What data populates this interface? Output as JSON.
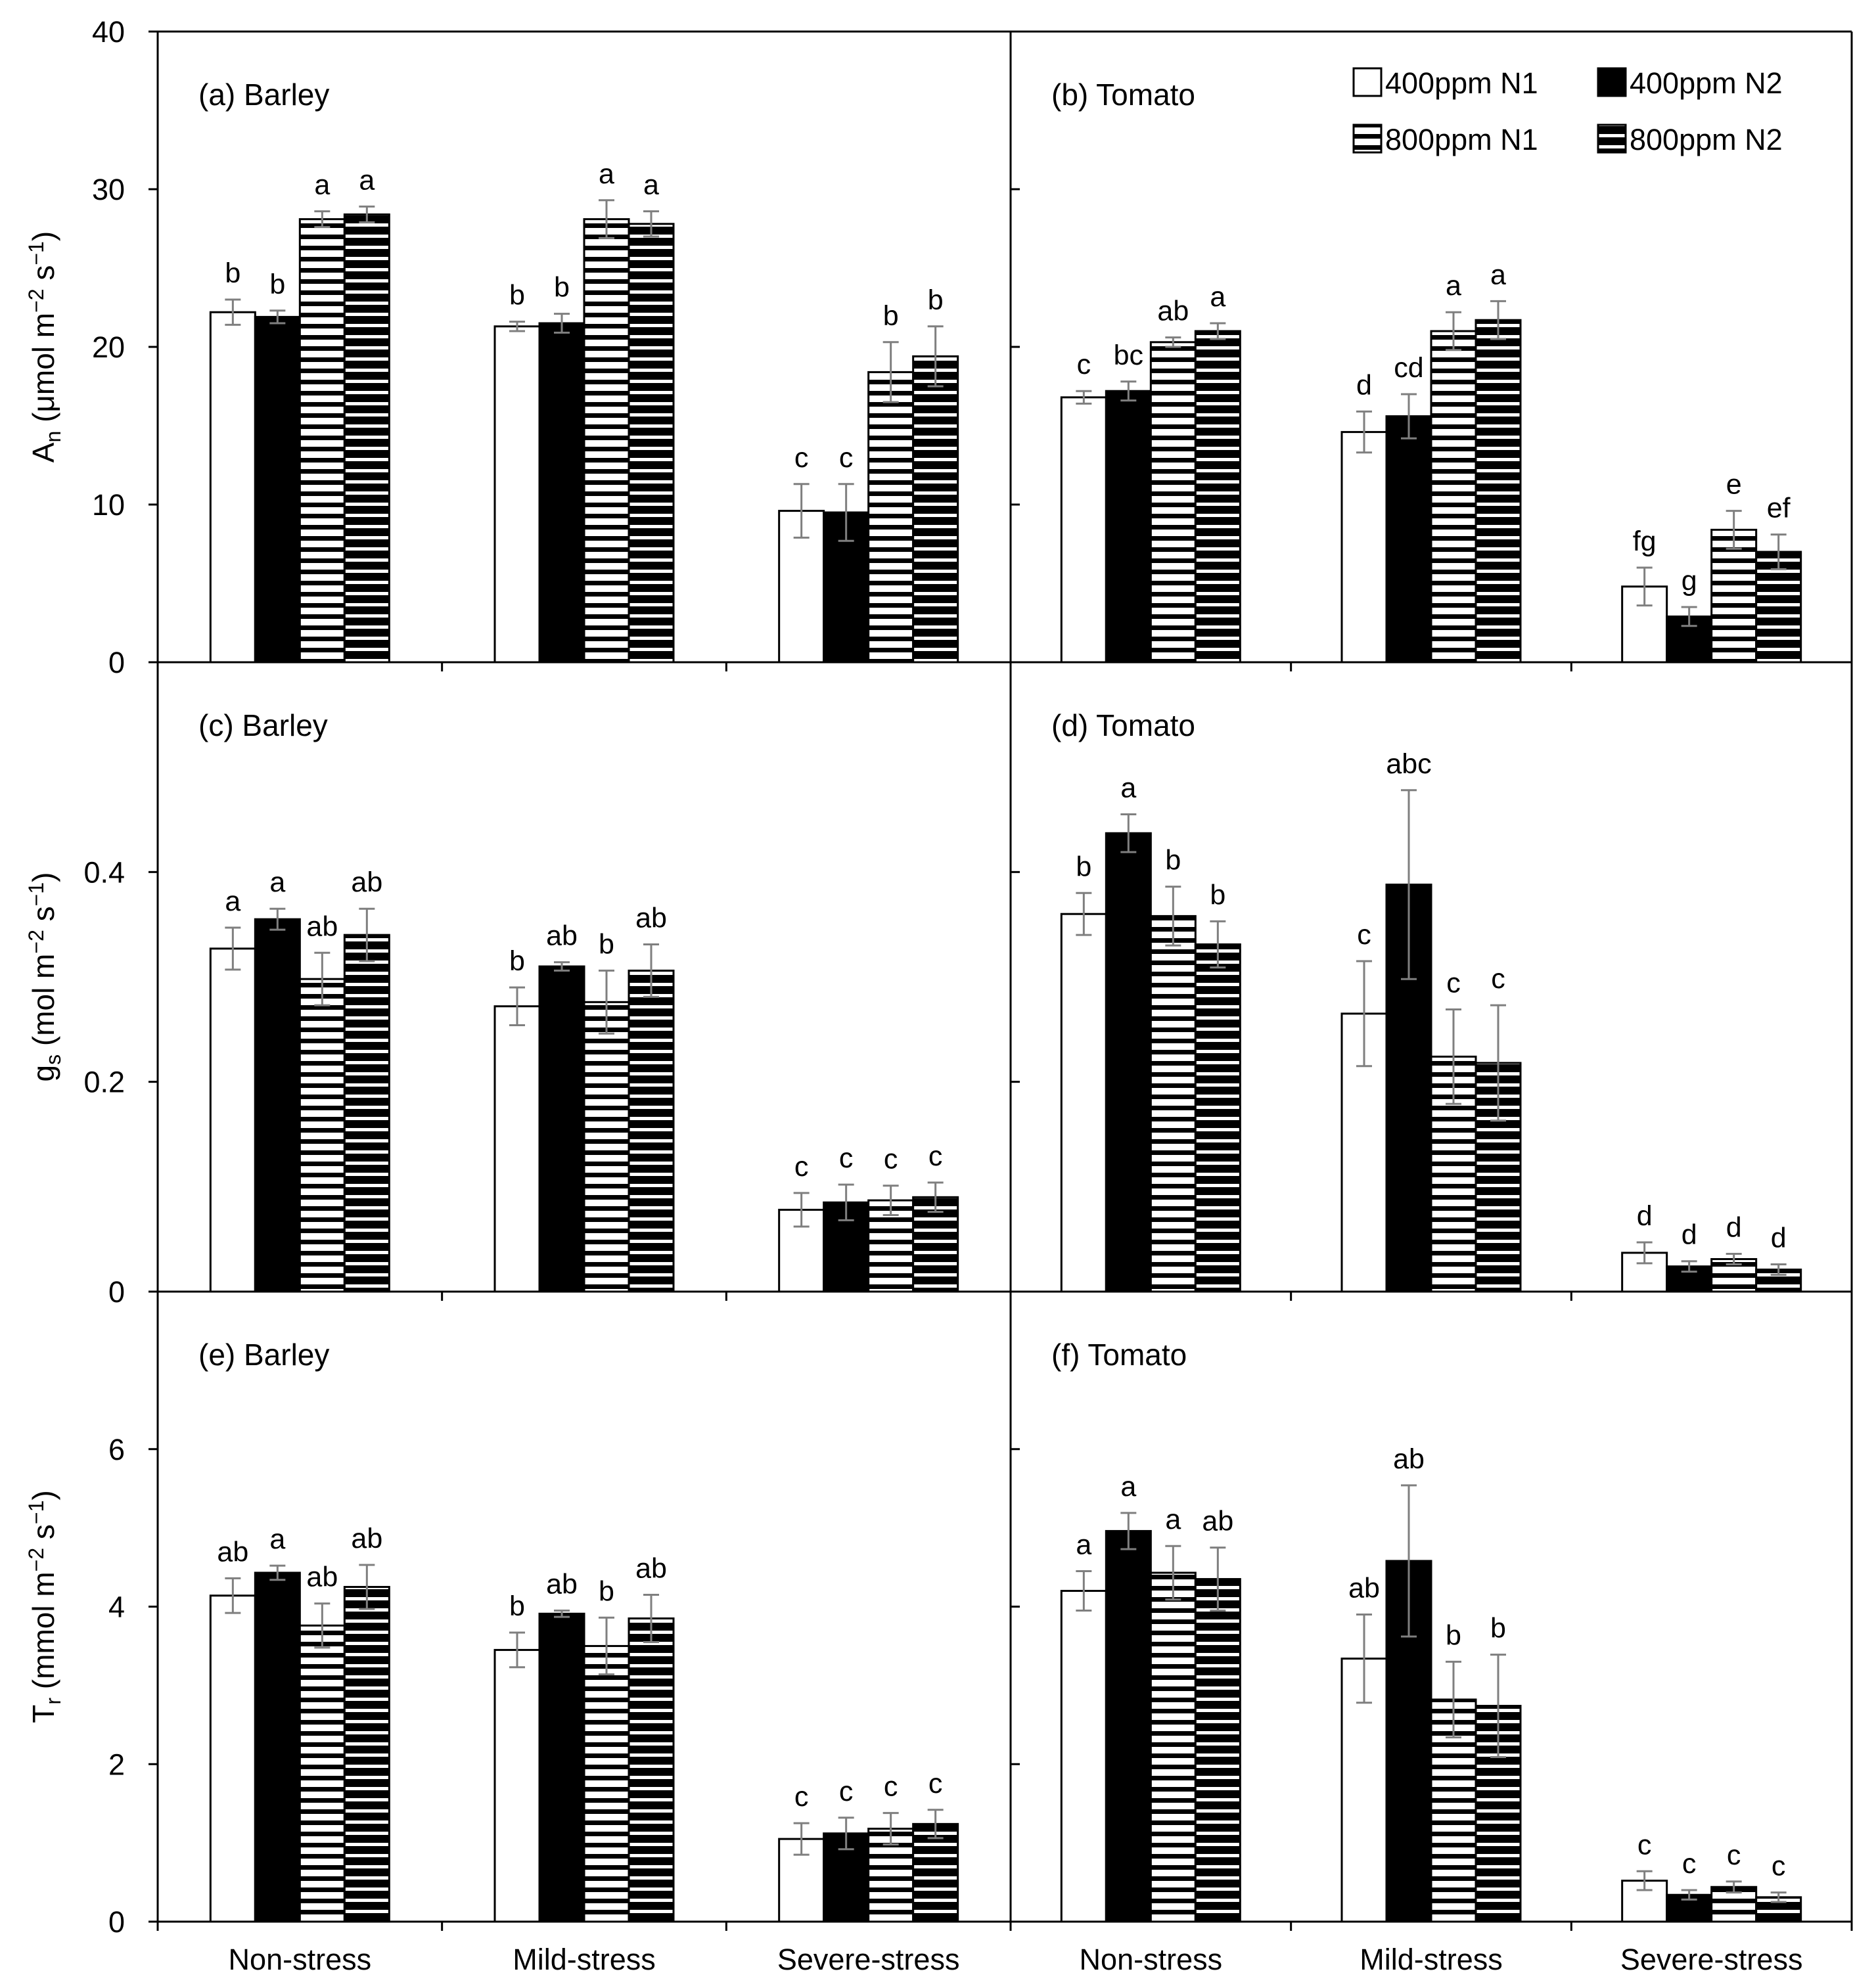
{
  "chart_data": {
    "type": "bar",
    "layout": "3x2 panel grid, shared x categories",
    "categories": [
      "Non-stress",
      "Mild-stress",
      "Severe-stress"
    ],
    "series_names": [
      "400ppm N1",
      "400ppm N2",
      "800ppm N1",
      "800ppm N2"
    ],
    "series_styles": [
      "open",
      "solid",
      "horizontal-stripes",
      "dense-horizontal-stripes"
    ],
    "legend": {
      "placement": "top-right of panel (b)",
      "entries": [
        "400ppm N1",
        "400ppm N2",
        "800ppm N1",
        "800ppm N2"
      ]
    },
    "rows": [
      {
        "ylabel_main": "A",
        "ylabel_sub": "n",
        "ylabel_rest": " (μmol m",
        "ylabel_sup1": "−2",
        "ylabel_mid": " s",
        "ylabel_sup2": "−1",
        "ylabel_end": ")",
        "ylim": [
          0,
          40
        ],
        "yticks": [
          0,
          10,
          20,
          30,
          40
        ],
        "ytick_labels": [
          "0",
          "10",
          "20",
          "30",
          "40"
        ]
      },
      {
        "ylabel_main": "g",
        "ylabel_sub": "s",
        "ylabel_rest": " (mol m",
        "ylabel_sup1": "−2",
        "ylabel_mid": " s",
        "ylabel_sup2": "−1",
        "ylabel_end": ")",
        "ylim": [
          0,
          0.6
        ],
        "yticks": [
          0,
          0.2,
          0.4
        ],
        "ytick_labels": [
          "0",
          "0.2",
          "0.4"
        ]
      },
      {
        "ylabel_main": "T",
        "ylabel_sub": "r",
        "ylabel_rest": " (mmol m",
        "ylabel_sup1": "−2",
        "ylabel_mid": " s",
        "ylabel_sup2": "−1",
        "ylabel_end": ")",
        "ylim": [
          0,
          8
        ],
        "yticks": [
          0,
          2,
          4,
          6
        ],
        "ytick_labels": [
          "0",
          "2",
          "4",
          "6"
        ]
      }
    ],
    "panels": [
      {
        "title": "(a) Barley",
        "row": 0,
        "col": 0,
        "values": [
          [
            22.2,
            21.9,
            28.1,
            28.4
          ],
          [
            21.3,
            21.5,
            28.1,
            27.8
          ],
          [
            9.6,
            9.5,
            18.4,
            19.4
          ]
        ],
        "errors": [
          [
            0.8,
            0.4,
            0.5,
            0.5
          ],
          [
            0.3,
            0.6,
            1.2,
            0.8
          ],
          [
            1.7,
            1.8,
            1.9,
            1.9
          ]
        ],
        "letters": [
          [
            "b",
            "b",
            "a",
            "a"
          ],
          [
            "b",
            "b",
            "a",
            "a"
          ],
          [
            "c",
            "c",
            "b",
            "b"
          ]
        ]
      },
      {
        "title": "(b) Tomato",
        "row": 0,
        "col": 1,
        "values": [
          [
            16.8,
            17.2,
            20.3,
            21.0
          ],
          [
            14.6,
            15.6,
            21.0,
            21.7
          ],
          [
            4.8,
            2.9,
            8.4,
            7.0
          ]
        ],
        "errors": [
          [
            0.4,
            0.6,
            0.3,
            0.5
          ],
          [
            1.3,
            1.4,
            1.2,
            1.2
          ],
          [
            1.2,
            0.6,
            1.2,
            1.1
          ]
        ],
        "letters": [
          [
            "c",
            "bc",
            "ab",
            "a"
          ],
          [
            "d",
            "cd",
            "a",
            "a"
          ],
          [
            "fg",
            "g",
            "e",
            "ef"
          ]
        ]
      },
      {
        "title": "(c) Barley",
        "row": 1,
        "col": 0,
        "values": [
          [
            0.327,
            0.355,
            0.298,
            0.34
          ],
          [
            0.272,
            0.31,
            0.276,
            0.306
          ],
          [
            0.078,
            0.085,
            0.087,
            0.09
          ]
        ],
        "errors": [
          [
            0.02,
            0.01,
            0.025,
            0.025
          ],
          [
            0.018,
            0.004,
            0.03,
            0.025
          ],
          [
            0.016,
            0.017,
            0.014,
            0.014
          ]
        ],
        "letters": [
          [
            "a",
            "a",
            "ab",
            "ab"
          ],
          [
            "b",
            "ab",
            "b",
            "ab"
          ],
          [
            "c",
            "c",
            "c",
            "c"
          ]
        ]
      },
      {
        "title": "(d) Tomato",
        "row": 1,
        "col": 1,
        "values": [
          [
            0.36,
            0.437,
            0.358,
            0.331
          ],
          [
            0.265,
            0.388,
            0.224,
            0.218
          ],
          [
            0.037,
            0.024,
            0.031,
            0.021
          ]
        ],
        "errors": [
          [
            0.02,
            0.018,
            0.028,
            0.022
          ],
          [
            0.05,
            0.09,
            0.045,
            0.055
          ],
          [
            0.01,
            0.005,
            0.005,
            0.005
          ]
        ],
        "letters": [
          [
            "b",
            "a",
            "b",
            "b"
          ],
          [
            "c",
            "abc",
            "c",
            "c"
          ],
          [
            "d",
            "d",
            "d",
            "d"
          ]
        ]
      },
      {
        "title": "(e) Barley",
        "row": 2,
        "col": 0,
        "values": [
          [
            4.14,
            4.43,
            3.76,
            4.25
          ],
          [
            3.45,
            3.91,
            3.5,
            3.85
          ],
          [
            1.05,
            1.12,
            1.18,
            1.24
          ]
        ],
        "errors": [
          [
            0.22,
            0.09,
            0.28,
            0.28
          ],
          [
            0.22,
            0.04,
            0.36,
            0.3
          ],
          [
            0.2,
            0.2,
            0.2,
            0.18
          ]
        ],
        "letters": [
          [
            "ab",
            "a",
            "ab",
            "ab"
          ],
          [
            "b",
            "ab",
            "b",
            "ab"
          ],
          [
            "c",
            "c",
            "c",
            "c"
          ]
        ]
      },
      {
        "title": "(f) Tomato",
        "row": 2,
        "col": 1,
        "values": [
          [
            4.2,
            4.96,
            4.43,
            4.35
          ],
          [
            3.34,
            4.58,
            2.82,
            2.74
          ],
          [
            0.52,
            0.34,
            0.44,
            0.31
          ]
        ],
        "errors": [
          [
            0.25,
            0.23,
            0.34,
            0.4
          ],
          [
            0.56,
            0.96,
            0.48,
            0.65
          ],
          [
            0.12,
            0.06,
            0.07,
            0.06
          ]
        ],
        "letters": [
          [
            "a",
            "a",
            "a",
            "ab"
          ],
          [
            "ab",
            "ab",
            "b",
            "b"
          ],
          [
            "c",
            "c",
            "c",
            "c"
          ]
        ]
      }
    ]
  }
}
